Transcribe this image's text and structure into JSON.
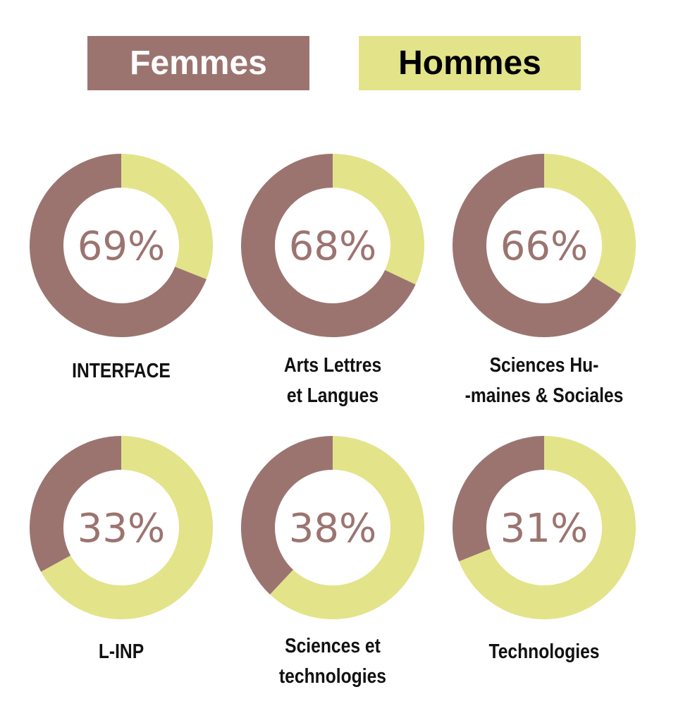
{
  "chart_data": {
    "type": "donut",
    "categories": [
      "INTERFACE",
      "Arts Lettres\net Langues",
      "Sciences Hu-\n-maines & Sociales",
      "L-INP",
      "Sciences et\ntechnologies",
      "Technologies"
    ],
    "series": [
      {
        "name": "Femmes",
        "color": "#9b7470",
        "values": [
          69,
          68,
          66,
          33,
          38,
          31
        ],
        "value_labels": [
          "69%",
          "68%",
          "66%",
          "33%",
          "38%",
          "31%"
        ]
      },
      {
        "name": "Hommes",
        "color": "#e3e38a",
        "values": [
          31,
          32,
          34,
          67,
          62,
          69
        ]
      }
    ]
  }
}
